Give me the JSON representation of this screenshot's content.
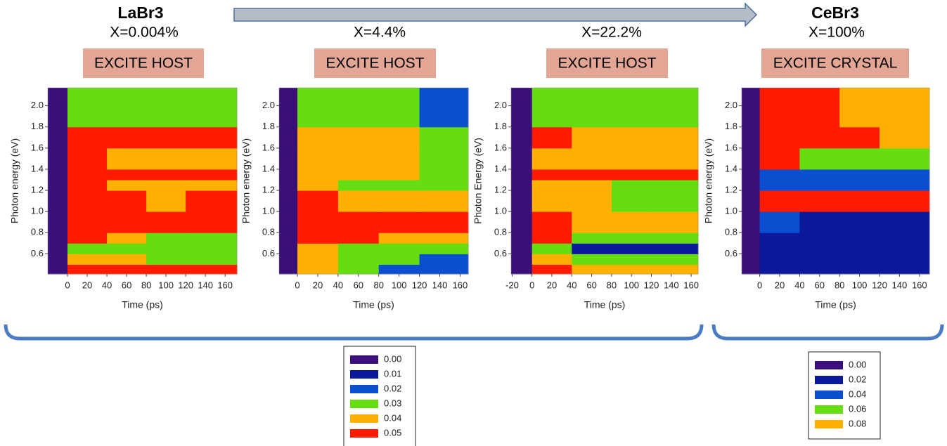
{
  "chart_data": [
    {
      "type": "heatmap",
      "title": "LaBr3",
      "subtitle": "X=0.004%",
      "label": "EXCITE HOST",
      "xlabel": "Time (ps)",
      "ylabel": "Photon energy (eV)",
      "legend": 0,
      "xlim": [
        -20,
        172
      ],
      "ylim": [
        0.41,
        2.17
      ],
      "xticks": [
        0,
        20,
        40,
        60,
        80,
        100,
        120,
        140,
        160
      ],
      "yticks": [
        0.6,
        0.8,
        {
          "value": 1.0,
          "label": "1.0"
        },
        1.2,
        1.4,
        1.6,
        1.8,
        {
          "value": 2.0,
          "label": "2.0"
        }
      ],
      "xbins": [
        -20,
        0,
        40,
        80,
        120,
        172
      ],
      "ybins": [
        0.41,
        0.5,
        0.6,
        0.7,
        0.8,
        1.0,
        1.2,
        1.3,
        1.4,
        1.6,
        1.8,
        2.17
      ],
      "z": [
        [
          0,
          0.05,
          0.05,
          0.05,
          0.05
        ],
        [
          0,
          0.04,
          0.04,
          0.03,
          0.03
        ],
        [
          0,
          0.03,
          0.03,
          0.03,
          0.03
        ],
        [
          0,
          0.05,
          0.04,
          0.03,
          0.03
        ],
        [
          0,
          0.05,
          0.05,
          0.05,
          0.05
        ],
        [
          0,
          0.05,
          0.05,
          0.04,
          0.05
        ],
        [
          0,
          0.05,
          0.04,
          0.04,
          0.04
        ],
        [
          0,
          0.05,
          0.05,
          0.05,
          0.05
        ],
        [
          0,
          0.05,
          0.04,
          0.04,
          0.04
        ],
        [
          0,
          0.05,
          0.05,
          0.05,
          0.05
        ],
        [
          0,
          0.03,
          0.03,
          0.03,
          0.03
        ]
      ]
    },
    {
      "type": "heatmap",
      "subtitle": "X=4.4%",
      "label": "EXCITE HOST",
      "xlabel": "Time (ps)",
      "ylabel": "Photon energy (eV)",
      "legend": 0,
      "xlim": [
        -18,
        168
      ],
      "ylim": [
        0.41,
        2.17
      ],
      "xticks": [
        0,
        20,
        40,
        60,
        80,
        100,
        120,
        140,
        160
      ],
      "yticks": [
        0.6,
        0.8,
        {
          "value": 1.0,
          "label": "1.0"
        },
        1.2,
        1.4,
        1.6,
        1.8,
        {
          "value": 2.0,
          "label": "2.0"
        }
      ],
      "xbins": [
        -18,
        0,
        40,
        80,
        120,
        168
      ],
      "ybins": [
        0.41,
        0.5,
        0.6,
        0.7,
        0.8,
        1.0,
        1.2,
        1.3,
        1.4,
        1.6,
        1.8,
        2.17
      ],
      "z": [
        [
          0,
          0.04,
          0.03,
          0.02,
          0.02
        ],
        [
          0,
          0.04,
          0.03,
          0.03,
          0.02
        ],
        [
          0,
          0.04,
          0.03,
          0.03,
          0.03
        ],
        [
          0,
          0.05,
          0.05,
          0.04,
          0.04
        ],
        [
          0,
          0.05,
          0.05,
          0.05,
          0.05
        ],
        [
          0,
          0.05,
          0.04,
          0.04,
          0.04
        ],
        [
          0,
          0.04,
          0.03,
          0.03,
          0.03
        ],
        [
          0,
          0.04,
          0.04,
          0.04,
          0.03
        ],
        [
          0,
          0.04,
          0.04,
          0.04,
          0.03
        ],
        [
          0,
          0.04,
          0.04,
          0.04,
          0.03
        ],
        [
          0,
          0.03,
          0.03,
          0.03,
          0.02
        ]
      ]
    },
    {
      "type": "heatmap",
      "subtitle": "X=22.2%",
      "label": "EXCITE HOST",
      "xlabel": "Time (ps)",
      "ylabel": "Photon Energy (eV)",
      "legend": 0,
      "xlim": [
        -21,
        167
      ],
      "ylim": [
        0.41,
        2.17
      ],
      "xticks": [
        -20,
        0,
        20,
        40,
        60,
        80,
        100,
        120,
        140,
        160
      ],
      "yticks": [
        0.6,
        0.8,
        {
          "value": 1.0,
          "label": "1.0"
        },
        1.2,
        1.4,
        1.6,
        1.8,
        {
          "value": 2.0,
          "label": "2.0"
        }
      ],
      "xbins": [
        -21,
        0,
        40,
        80,
        120,
        167
      ],
      "ybins": [
        0.41,
        0.5,
        0.6,
        0.7,
        0.8,
        1.0,
        1.2,
        1.3,
        1.4,
        1.6,
        1.8,
        2.17
      ],
      "z": [
        [
          0,
          0.05,
          0.04,
          0.04,
          0.04
        ],
        [
          0,
          0.04,
          0.03,
          0.03,
          0.03
        ],
        [
          0,
          0.03,
          0.01,
          0.01,
          0.01
        ],
        [
          0,
          0.05,
          0.03,
          0.03,
          0.03
        ],
        [
          0,
          0.05,
          0.04,
          0.04,
          0.04
        ],
        [
          0,
          0.04,
          0.04,
          0.03,
          0.03
        ],
        [
          0,
          0.04,
          0.04,
          0.03,
          0.03
        ],
        [
          0,
          0.05,
          0.05,
          0.05,
          0.05
        ],
        [
          0,
          0.04,
          0.04,
          0.04,
          0.04
        ],
        [
          0,
          0.05,
          0.04,
          0.04,
          0.04
        ],
        [
          0,
          0.03,
          0.03,
          0.03,
          0.03
        ]
      ]
    },
    {
      "type": "heatmap",
      "title": "CeBr3",
      "subtitle": "X=100%",
      "label": "EXCITE CRYSTAL",
      "xlabel": "Time (ps)",
      "ylabel": "Photon energy (eV)",
      "legend": 1,
      "xlim": [
        -18,
        170
      ],
      "ylim": [
        0.41,
        2.17
      ],
      "xticks": [
        0,
        20,
        40,
        60,
        80,
        100,
        120,
        140,
        160
      ],
      "yticks": [
        0.6,
        0.8,
        {
          "value": 1.0,
          "label": "1.0"
        },
        1.2,
        1.4,
        1.6,
        1.8,
        {
          "value": 2.0,
          "label": "2.0"
        }
      ],
      "xbins": [
        -18,
        0,
        40,
        80,
        120,
        170
      ],
      "ybins": [
        0.41,
        0.5,
        0.6,
        0.7,
        0.8,
        1.0,
        1.2,
        1.3,
        1.4,
        1.6,
        1.8,
        2.17
      ],
      "z": [
        [
          0,
          0.02,
          0.02,
          0.02,
          0.02
        ],
        [
          0,
          0.02,
          0.02,
          0.02,
          0.02
        ],
        [
          0,
          0.02,
          0.02,
          0.02,
          0.02
        ],
        [
          0,
          0.02,
          0.02,
          0.02,
          0.02
        ],
        [
          0,
          0.04,
          0.02,
          0.02,
          0.02
        ],
        [
          0,
          0.1,
          0.1,
          0.1,
          0.1
        ],
        [
          0,
          0.04,
          0.04,
          0.04,
          0.04
        ],
        [
          0,
          0.04,
          0.04,
          0.04,
          0.04
        ],
        [
          0,
          0.1,
          0.06,
          0.06,
          0.06
        ],
        [
          0,
          0.1,
          0.1,
          0.1,
          0.08
        ],
        [
          0,
          0.1,
          0.1,
          0.08,
          0.08
        ]
      ]
    }
  ],
  "legends": [
    {
      "levels": [
        {
          "value": 0,
          "label": "0.00"
        },
        0.01,
        0.02,
        0.03,
        0.04,
        0.05
      ],
      "colors": [
        "#3b0f7a",
        "#0a1a9a",
        "#0a4fd0",
        "#66dd11",
        "#ffb000",
        "#ff1a00"
      ]
    },
    {
      "levels": [
        {
          "value": 0,
          "label": "0.00"
        },
        0.02,
        0.04,
        0.06,
        0.08
      ],
      "colors": [
        "#3b0f7a",
        "#0a1a9a",
        "#0a4fd0",
        "#66dd11",
        "#ffb000"
      ],
      "above_color": "#ff1a00"
    }
  ]
}
